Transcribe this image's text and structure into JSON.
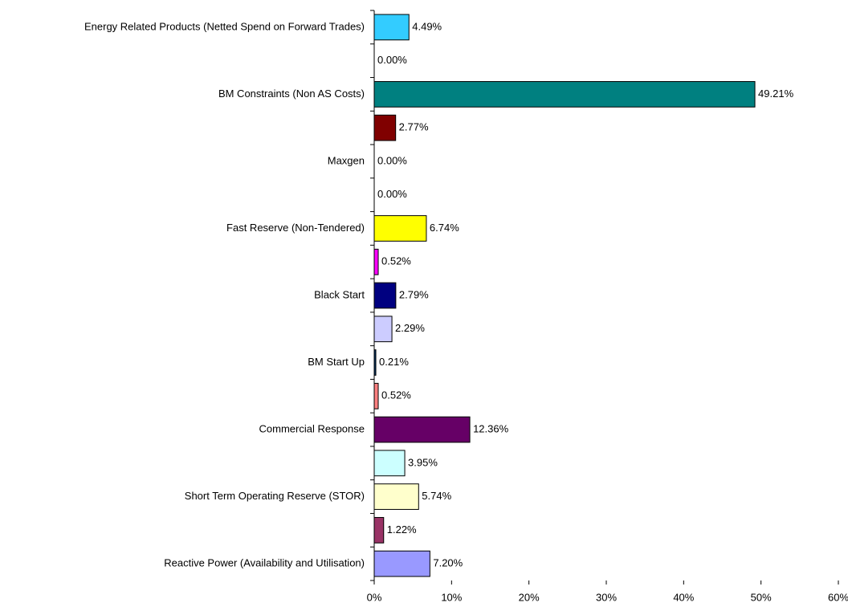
{
  "chart_data": {
    "type": "barh",
    "categories": [
      "Energy Related Products (Netted Spend on Forward Trades)",
      null,
      "BM Constraints (Non AS Costs)",
      null,
      "Maxgen",
      null,
      "Fast Reserve (Non-Tendered)",
      null,
      "Black Start",
      null,
      "BM Start Up",
      null,
      "Commercial Response",
      null,
      "Short Term Operating Reserve (STOR)",
      null,
      "Reactive Power (Availability and Utilisation)"
    ],
    "values": [
      4.49,
      0,
      49.21,
      2.77,
      0,
      0,
      6.74,
      0.52,
      2.79,
      2.29,
      0.21,
      0.52,
      12.36,
      3.95,
      5.74,
      1.22,
      7.2
    ],
    "value_labels": [
      "4.49%",
      "0.00%",
      "49.21%",
      "2.77%",
      "0.00%",
      "0.00%",
      "6.74%",
      "0.52%",
      "2.79%",
      "2.29%",
      "0.21%",
      "0.52%",
      "12.36%",
      "3.95%",
      "5.74%",
      "1.22%",
      "7.20%"
    ],
    "colors": [
      "#33ccff",
      "#ffffff",
      "#008080",
      "#800000",
      "#ffffff",
      "#ffffff",
      "#ffff00",
      "#ff00ff",
      "#000080",
      "#ccccff",
      "#003366",
      "#ff8080",
      "#660066",
      "#ccffff",
      "#ffffcc",
      "#993366",
      "#9999ff"
    ],
    "xlim": [
      0,
      60
    ],
    "xticks": [
      {
        "value": 0,
        "label": "0%"
      },
      {
        "value": 10,
        "label": "10%"
      },
      {
        "value": 20,
        "label": "20%"
      },
      {
        "value": 30,
        "label": "30%"
      },
      {
        "value": 40,
        "label": "40%"
      },
      {
        "value": 50,
        "label": "50%"
      },
      {
        "value": 60,
        "label": "60%"
      }
    ],
    "grid": false
  }
}
